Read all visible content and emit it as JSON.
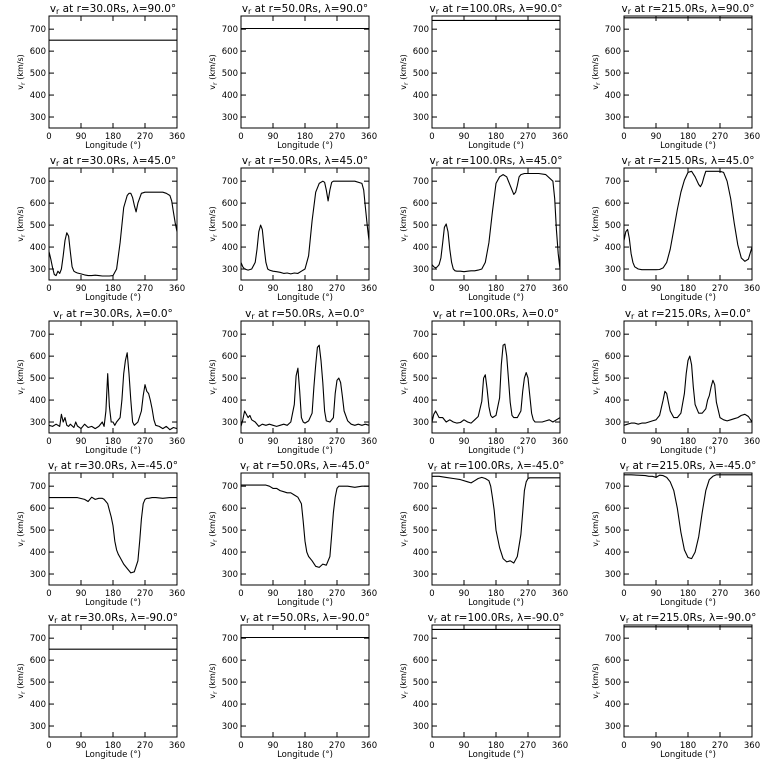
{
  "figure": {
    "xlabel": "Longitude (°)",
    "ylabel": "v_r (km/s)",
    "xticks": [
      0,
      90,
      180,
      270,
      360
    ],
    "yticks": [
      300,
      400,
      500,
      600,
      700
    ],
    "xlim": [
      0,
      360
    ],
    "ylim": [
      250,
      760
    ]
  },
  "chart_data": [
    {
      "type": "line",
      "title_prefix": "v",
      "title_sub": "r",
      "title_rest": " at r=30.0Rs, λ=90.0°",
      "x": [
        0,
        360
      ],
      "y": [
        650,
        650
      ]
    },
    {
      "type": "line",
      "title_prefix": "v",
      "title_sub": "r",
      "title_rest": " at r=50.0Rs, λ=90.0°",
      "x": [
        0,
        360
      ],
      "y": [
        703,
        703
      ]
    },
    {
      "type": "line",
      "title_prefix": "v",
      "title_sub": "r",
      "title_rest": " at r=100.0Rs, λ=90.0°",
      "x": [
        0,
        360
      ],
      "y": [
        740,
        740
      ]
    },
    {
      "type": "line",
      "title_prefix": "v",
      "title_sub": "r",
      "title_rest": " at r=215.0Rs, λ=90.0°",
      "x": [
        0,
        360
      ],
      "y": [
        752,
        752
      ]
    },
    {
      "type": "line",
      "title_prefix": "v",
      "title_sub": "r",
      "title_rest": " at r=30.0Rs, λ=45.0°",
      "x": [
        0,
        5,
        10,
        15,
        20,
        25,
        30,
        35,
        40,
        45,
        50,
        55,
        60,
        65,
        70,
        75,
        80,
        90,
        100,
        110,
        120,
        130,
        140,
        150,
        160,
        170,
        180,
        190,
        200,
        210,
        220,
        225,
        230,
        235,
        240,
        245,
        250,
        260,
        270,
        280,
        300,
        320,
        330,
        340,
        345,
        350,
        355,
        360
      ],
      "y": [
        380,
        345,
        305,
        275,
        270,
        290,
        280,
        300,
        360,
        430,
        465,
        450,
        380,
        310,
        290,
        285,
        282,
        278,
        273,
        270,
        270,
        272,
        270,
        268,
        268,
        268,
        270,
        300,
        420,
        580,
        635,
        645,
        645,
        625,
        590,
        560,
        600,
        645,
        650,
        650,
        650,
        650,
        645,
        635,
        610,
        560,
        510,
        470
      ]
    },
    {
      "type": "line",
      "title_prefix": "v",
      "title_sub": "r",
      "title_rest": " at r=50.0Rs, λ=45.0°",
      "x": [
        0,
        5,
        10,
        20,
        30,
        40,
        45,
        50,
        55,
        60,
        65,
        70,
        75,
        80,
        90,
        100,
        110,
        120,
        130,
        140,
        150,
        160,
        170,
        180,
        190,
        200,
        210,
        220,
        230,
        235,
        240,
        245,
        250,
        255,
        260,
        270,
        280,
        300,
        320,
        340,
        345,
        350,
        355,
        360
      ],
      "y": [
        330,
        310,
        300,
        295,
        300,
        330,
        390,
        470,
        500,
        480,
        400,
        330,
        300,
        295,
        290,
        288,
        285,
        280,
        282,
        278,
        282,
        280,
        290,
        300,
        360,
        520,
        650,
        690,
        700,
        695,
        660,
        610,
        660,
        695,
        700,
        700,
        700,
        700,
        700,
        690,
        660,
        580,
        500,
        430
      ]
    },
    {
      "type": "line",
      "title_prefix": "v",
      "title_sub": "r",
      "title_rest": " at r=100.0Rs, λ=45.0°",
      "x": [
        0,
        5,
        10,
        15,
        20,
        25,
        30,
        35,
        40,
        45,
        50,
        55,
        60,
        65,
        70,
        80,
        90,
        100,
        110,
        120,
        130,
        140,
        150,
        160,
        170,
        180,
        190,
        200,
        210,
        220,
        230,
        235,
        240,
        245,
        250,
        260,
        270,
        280,
        300,
        320,
        340,
        345,
        350,
        355,
        360
      ],
      "y": [
        320,
        310,
        305,
        310,
        320,
        350,
        420,
        490,
        505,
        470,
        390,
        330,
        300,
        292,
        290,
        290,
        288,
        290,
        292,
        292,
        295,
        300,
        330,
        420,
        560,
        690,
        720,
        730,
        720,
        680,
        640,
        650,
        680,
        720,
        730,
        735,
        735,
        735,
        735,
        730,
        700,
        620,
        480,
        370,
        300
      ]
    },
    {
      "type": "line",
      "title_prefix": "v",
      "title_sub": "r",
      "title_rest": " at r=215.0Rs, λ=45.0°",
      "x": [
        0,
        5,
        10,
        15,
        20,
        25,
        30,
        40,
        50,
        60,
        70,
        80,
        90,
        100,
        110,
        120,
        130,
        140,
        150,
        160,
        170,
        180,
        190,
        200,
        210,
        215,
        220,
        225,
        230,
        240,
        250,
        260,
        270,
        280,
        290,
        300,
        310,
        320,
        330,
        340,
        350,
        360
      ],
      "y": [
        430,
        470,
        480,
        440,
        370,
        330,
        310,
        300,
        297,
        297,
        297,
        297,
        297,
        298,
        305,
        330,
        390,
        480,
        570,
        650,
        705,
        740,
        745,
        720,
        685,
        675,
        690,
        720,
        745,
        745,
        745,
        745,
        745,
        740,
        700,
        620,
        510,
        410,
        350,
        335,
        345,
        400
      ]
    },
    {
      "type": "line",
      "title_prefix": "v",
      "title_sub": "r",
      "title_rest": " at r=30.0Rs, λ=0.0°",
      "x": [
        0,
        10,
        20,
        30,
        35,
        40,
        45,
        50,
        55,
        60,
        70,
        75,
        80,
        90,
        100,
        110,
        120,
        130,
        140,
        150,
        155,
        160,
        165,
        170,
        175,
        180,
        185,
        190,
        200,
        205,
        210,
        215,
        220,
        225,
        230,
        235,
        240,
        250,
        260,
        265,
        270,
        275,
        280,
        285,
        290,
        295,
        300,
        310,
        320,
        330,
        340,
        350,
        360
      ],
      "y": [
        285,
        280,
        290,
        280,
        335,
        300,
        320,
        285,
        280,
        290,
        275,
        300,
        282,
        270,
        290,
        275,
        280,
        270,
        280,
        300,
        280,
        350,
        520,
        370,
        300,
        300,
        285,
        300,
        320,
        400,
        520,
        580,
        615,
        520,
        400,
        300,
        285,
        300,
        350,
        420,
        470,
        440,
        430,
        400,
        360,
        310,
        285,
        280,
        270,
        280,
        265,
        275,
        270
      ]
    },
    {
      "type": "line",
      "title_prefix": "v",
      "title_sub": "r",
      "title_rest": " at r=50.0Rs, λ=0.0°",
      "x": [
        0,
        5,
        10,
        20,
        25,
        30,
        40,
        50,
        60,
        70,
        80,
        90,
        100,
        110,
        120,
        130,
        140,
        150,
        155,
        160,
        165,
        170,
        175,
        180,
        190,
        200,
        205,
        210,
        215,
        220,
        225,
        230,
        235,
        240,
        250,
        260,
        265,
        270,
        275,
        280,
        285,
        290,
        300,
        310,
        320,
        330,
        340,
        350,
        360
      ],
      "y": [
        280,
        310,
        350,
        320,
        330,
        310,
        300,
        280,
        290,
        285,
        290,
        285,
        280,
        285,
        290,
        285,
        300,
        380,
        510,
        545,
        440,
        320,
        300,
        295,
        305,
        340,
        460,
        560,
        640,
        650,
        580,
        480,
        350,
        305,
        300,
        320,
        430,
        490,
        500,
        480,
        420,
        350,
        305,
        290,
        285,
        290,
        285,
        290,
        285
      ]
    },
    {
      "type": "line",
      "title_prefix": "v",
      "title_sub": "r",
      "title_rest": " at r=100.0Rs, λ=0.0°",
      "x": [
        0,
        5,
        10,
        20,
        30,
        40,
        50,
        60,
        70,
        80,
        90,
        100,
        110,
        120,
        130,
        140,
        145,
        150,
        155,
        160,
        165,
        170,
        180,
        190,
        195,
        200,
        205,
        210,
        215,
        220,
        225,
        230,
        240,
        250,
        255,
        260,
        265,
        270,
        275,
        280,
        285,
        290,
        300,
        310,
        320,
        330,
        340,
        350,
        360
      ],
      "y": [
        300,
        335,
        350,
        320,
        320,
        300,
        310,
        300,
        295,
        298,
        310,
        300,
        295,
        310,
        325,
        395,
        500,
        515,
        450,
        370,
        330,
        320,
        330,
        410,
        560,
        650,
        655,
        600,
        500,
        390,
        330,
        320,
        320,
        350,
        440,
        500,
        525,
        500,
        420,
        340,
        310,
        300,
        300,
        300,
        305,
        310,
        300,
        310,
        320
      ]
    },
    {
      "type": "line",
      "title_prefix": "v",
      "title_sub": "r",
      "title_rest": " at r=215.0Rs, λ=0.0°",
      "x": [
        0,
        10,
        20,
        30,
        40,
        50,
        60,
        70,
        80,
        90,
        100,
        110,
        115,
        120,
        125,
        130,
        140,
        150,
        160,
        170,
        175,
        180,
        185,
        190,
        195,
        200,
        210,
        220,
        230,
        235,
        240,
        245,
        250,
        255,
        260,
        270,
        280,
        290,
        300,
        310,
        320,
        330,
        340,
        350,
        360
      ],
      "y": [
        285,
        290,
        295,
        295,
        290,
        295,
        295,
        300,
        305,
        310,
        330,
        400,
        440,
        430,
        390,
        350,
        320,
        320,
        340,
        430,
        520,
        580,
        600,
        560,
        460,
        380,
        340,
        340,
        360,
        400,
        420,
        460,
        490,
        470,
        390,
        320,
        310,
        305,
        310,
        315,
        320,
        330,
        335,
        325,
        300
      ]
    },
    {
      "type": "line",
      "title_prefix": "v",
      "title_sub": "r",
      "title_rest": " at r=30.0Rs, λ=-45.0°",
      "x": [
        0,
        20,
        40,
        60,
        80,
        100,
        110,
        120,
        130,
        140,
        150,
        155,
        160,
        165,
        170,
        175,
        180,
        185,
        190,
        195,
        200,
        210,
        220,
        230,
        240,
        250,
        255,
        260,
        265,
        270,
        275,
        280,
        290,
        300,
        320,
        340,
        360
      ],
      "y": [
        648,
        648,
        648,
        648,
        648,
        640,
        630,
        650,
        640,
        645,
        645,
        640,
        630,
        620,
        590,
        560,
        520,
        450,
        410,
        390,
        375,
        345,
        325,
        305,
        310,
        360,
        450,
        550,
        620,
        640,
        645,
        645,
        648,
        648,
        645,
        648,
        648
      ]
    },
    {
      "type": "line",
      "title_prefix": "v",
      "title_sub": "r",
      "title_rest": " at r=50.0Rs, λ=-45.0°",
      "x": [
        0,
        30,
        60,
        70,
        80,
        90,
        100,
        110,
        120,
        130,
        140,
        150,
        160,
        170,
        175,
        180,
        185,
        190,
        200,
        210,
        220,
        230,
        240,
        250,
        255,
        260,
        265,
        270,
        275,
        280,
        290,
        300,
        320,
        340,
        360
      ],
      "y": [
        705,
        705,
        705,
        705,
        700,
        690,
        690,
        680,
        675,
        670,
        670,
        660,
        650,
        620,
        540,
        450,
        400,
        380,
        360,
        335,
        330,
        345,
        340,
        380,
        480,
        580,
        650,
        690,
        700,
        700,
        700,
        700,
        695,
        700,
        700
      ]
    },
    {
      "type": "line",
      "title_prefix": "v",
      "title_sub": "r",
      "title_rest": " at r=100.0Rs, λ=-45.0°",
      "x": [
        0,
        20,
        40,
        60,
        80,
        100,
        110,
        120,
        130,
        140,
        150,
        160,
        165,
        170,
        175,
        180,
        190,
        200,
        210,
        220,
        230,
        240,
        250,
        255,
        260,
        265,
        270,
        275,
        280,
        300,
        320,
        340,
        360
      ],
      "y": [
        745,
        745,
        740,
        735,
        730,
        720,
        715,
        725,
        735,
        740,
        735,
        725,
        700,
        650,
        590,
        500,
        420,
        370,
        355,
        360,
        350,
        380,
        480,
        580,
        680,
        720,
        735,
        738,
        738,
        738,
        738,
        738,
        738
      ]
    },
    {
      "type": "line",
      "title_prefix": "v",
      "title_sub": "r",
      "title_rest": " at r=215.0Rs, λ=-45.0°",
      "x": [
        0,
        20,
        40,
        60,
        70,
        80,
        90,
        100,
        110,
        120,
        130,
        140,
        150,
        160,
        170,
        180,
        190,
        200,
        210,
        220,
        230,
        240,
        250,
        260,
        270,
        280,
        300,
        320,
        340,
        360
      ],
      "y": [
        752,
        752,
        750,
        748,
        745,
        745,
        740,
        750,
        748,
        740,
        720,
        680,
        600,
        490,
        410,
        375,
        370,
        400,
        470,
        580,
        680,
        730,
        745,
        752,
        752,
        752,
        752,
        752,
        752,
        752
      ]
    },
    {
      "type": "line",
      "title_prefix": "v",
      "title_sub": "r",
      "title_rest": " at r=30.0Rs, λ=-90.0°",
      "x": [
        0,
        360
      ],
      "y": [
        650,
        650
      ]
    },
    {
      "type": "line",
      "title_prefix": "v",
      "title_sub": "r",
      "title_rest": " at r=50.0Rs, λ=-90.0°",
      "x": [
        0,
        360
      ],
      "y": [
        703,
        703
      ]
    },
    {
      "type": "line",
      "title_prefix": "v",
      "title_sub": "r",
      "title_rest": " at r=100.0Rs, λ=-90.0°",
      "x": [
        0,
        360
      ],
      "y": [
        740,
        740
      ]
    },
    {
      "type": "line",
      "title_prefix": "v",
      "title_sub": "r",
      "title_rest": " at r=215.0Rs, λ=-90.0°",
      "x": [
        0,
        360
      ],
      "y": [
        752,
        752
      ]
    }
  ]
}
